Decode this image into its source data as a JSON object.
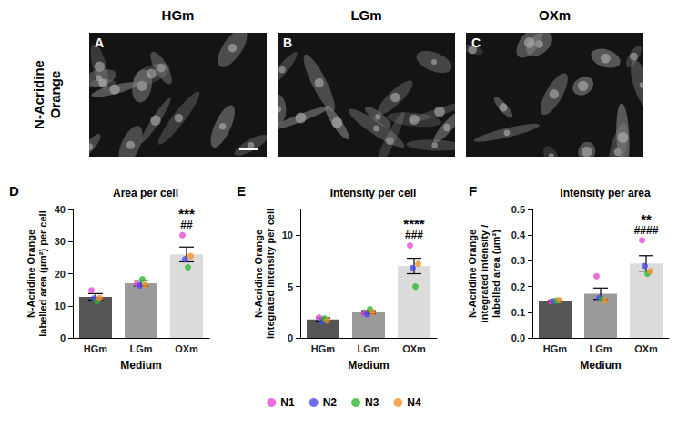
{
  "images": {
    "row_label": "N-Acridine Orange",
    "panels": [
      {
        "letter": "A",
        "title": "HGm"
      },
      {
        "letter": "B",
        "title": "LGm"
      },
      {
        "letter": "C",
        "title": "OXm"
      }
    ]
  },
  "chart_data": [
    {
      "type": "bar",
      "letter": "D",
      "title": "Area per cell",
      "x_label": "Medium",
      "y_label": "N-Acridine Orange\nlabelled area (µm²) per cell",
      "categories": [
        "HGm",
        "LGm",
        "OXm"
      ],
      "values": [
        12.8,
        17.0,
        26.0
      ],
      "errors": [
        1.0,
        0.8,
        2.3
      ],
      "colors": [
        "#555555",
        "#9a9a9a",
        "#dcdcdc"
      ],
      "ylim": [
        0,
        40
      ],
      "yticks": [
        0,
        10,
        20,
        30,
        40
      ],
      "grid": false,
      "legend": "bottom",
      "annotations": [
        {
          "category": "OXm",
          "texts": [
            "***",
            "##"
          ]
        }
      ],
      "series": [
        {
          "name": "N1",
          "type": "scatter",
          "marker": "circle",
          "color": "#e34ad6",
          "values": [
            14.8,
            16.8,
            32.0
          ]
        },
        {
          "name": "N2",
          "type": "scatter",
          "marker": "circle",
          "color": "#4a4ae8",
          "values": [
            12.3,
            16.3,
            24.5
          ]
        },
        {
          "name": "N3",
          "type": "scatter",
          "marker": "circle",
          "color": "#2eb82e",
          "values": [
            11.5,
            18.3,
            22.0
          ]
        },
        {
          "name": "N4",
          "type": "scatter",
          "marker": "circle",
          "color": "#f2912a",
          "values": [
            12.5,
            16.5,
            25.5
          ]
        }
      ]
    },
    {
      "type": "bar",
      "letter": "E",
      "title": "Intensity per cell",
      "x_label": "Medium",
      "y_label": "N-Acridine Orange\nintegrated intensity per cell",
      "categories": [
        "HGm",
        "LGm",
        "OXm"
      ],
      "values": [
        1.8,
        2.5,
        7.0
      ],
      "errors": [
        0.15,
        0.15,
        0.75
      ],
      "colors": [
        "#555555",
        "#9a9a9a",
        "#dcdcdc"
      ],
      "ylim": [
        0,
        12.5
      ],
      "yticks": [
        0,
        5,
        10
      ],
      "grid": false,
      "legend": "bottom",
      "annotations": [
        {
          "category": "OXm",
          "texts": [
            "****",
            "###"
          ]
        }
      ],
      "series": [
        {
          "name": "N1",
          "type": "scatter",
          "marker": "circle",
          "color": "#e34ad6",
          "values": [
            2.0,
            2.4,
            9.0
          ]
        },
        {
          "name": "N2",
          "type": "scatter",
          "marker": "circle",
          "color": "#4a4ae8",
          "values": [
            1.6,
            2.3,
            6.8
          ]
        },
        {
          "name": "N3",
          "type": "scatter",
          "marker": "circle",
          "color": "#2eb82e",
          "values": [
            1.9,
            2.8,
            5.0
          ]
        },
        {
          "name": "N4",
          "type": "scatter",
          "marker": "circle",
          "color": "#f2912a",
          "values": [
            1.7,
            2.5,
            7.2
          ]
        }
      ]
    },
    {
      "type": "bar",
      "letter": "F",
      "title": "Intensity per area",
      "x_label": "Medium",
      "y_label": "N-Acridine Orange\nintegrated intensity /\nlabelled area (µm²)",
      "categories": [
        "HGm",
        "LGm",
        "OXm"
      ],
      "values": [
        0.143,
        0.172,
        0.29
      ],
      "errors": [
        0.003,
        0.022,
        0.03
      ],
      "colors": [
        "#555555",
        "#9a9a9a",
        "#dcdcdc"
      ],
      "ylim": [
        0,
        0.5
      ],
      "yticks": [
        {
          "value": 0,
          "label": "0.0"
        },
        0.1,
        0.2,
        0.3,
        0.4,
        0.5
      ],
      "grid": false,
      "legend": "bottom",
      "annotations": [
        {
          "category": "OXm",
          "texts": [
            "**",
            "####"
          ]
        }
      ],
      "series": [
        {
          "name": "N1",
          "type": "scatter",
          "marker": "circle",
          "color": "#e34ad6",
          "values": [
            0.142,
            0.24,
            0.38
          ]
        },
        {
          "name": "N2",
          "type": "scatter",
          "marker": "circle",
          "color": "#4a4ae8",
          "values": [
            0.143,
            0.155,
            0.28
          ]
        },
        {
          "name": "N3",
          "type": "scatter",
          "marker": "circle",
          "color": "#2eb82e",
          "values": [
            0.145,
            0.15,
            0.25
          ]
        },
        {
          "name": "N4",
          "type": "scatter",
          "marker": "circle",
          "color": "#f2912a",
          "values": [
            0.147,
            0.145,
            0.26
          ]
        }
      ]
    }
  ]
}
